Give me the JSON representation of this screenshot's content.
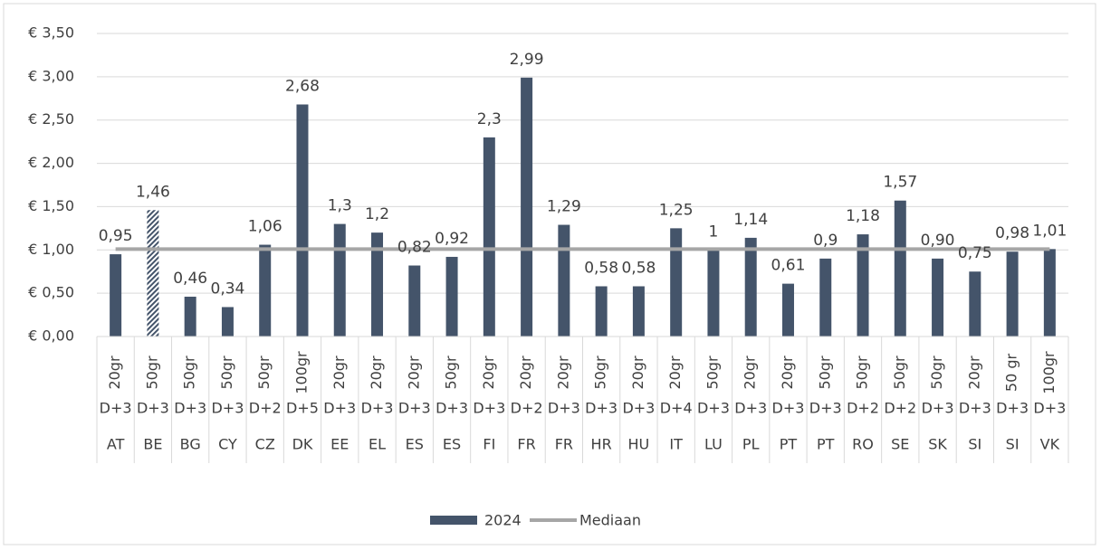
{
  "chart_data": {
    "type": "bar",
    "categories": [
      "AT",
      "BE",
      "BG",
      "CY",
      "CZ",
      "DK",
      "EE",
      "EL",
      "ES",
      "ES",
      "FI",
      "FR",
      "FR",
      "HR",
      "HU",
      "IT",
      "LU",
      "PL",
      "PT",
      "PT",
      "RO",
      "SE",
      "SK",
      "SI",
      "SI",
      "VK"
    ],
    "weights": [
      "20gr",
      "50gr",
      "50gr",
      "50gr",
      "50gr",
      "100gr",
      "20gr",
      "20gr",
      "20gr",
      "50gr",
      "20gr",
      "20gr",
      "20gr",
      "50gr",
      "20gr",
      "20gr",
      "50gr",
      "20gr",
      "20gr",
      "50gr",
      "50gr",
      "50gr",
      "50gr",
      "20gr",
      "50 gr",
      "100gr"
    ],
    "delivery": [
      "D+3",
      "D+3",
      "D+3",
      "D+3",
      "D+2",
      "D+5",
      "D+3",
      "D+3",
      "D+3",
      "D+3",
      "D+3",
      "D+2",
      "D+3",
      "D+3",
      "D+3",
      "D+4",
      "D+3",
      "D+3",
      "D+3",
      "D+3",
      "D+2",
      "D+2",
      "D+3",
      "D+3",
      "D+3",
      "D+3"
    ],
    "series": [
      {
        "name": "2024",
        "type": "bar",
        "color": "#44546a",
        "hatched_index": 1,
        "values": [
          0.95,
          1.46,
          0.46,
          0.34,
          1.06,
          2.68,
          1.3,
          1.2,
          0.82,
          0.92,
          2.3,
          2.99,
          1.29,
          0.58,
          0.58,
          1.25,
          1,
          1.14,
          0.61,
          0.9,
          1.18,
          1.57,
          0.9,
          0.75,
          0.98,
          1.01
        ],
        "value_labels": [
          "0,95",
          "1,46",
          "0,46",
          "0,34",
          "1,06",
          "2,68",
          "1,3",
          "1,2",
          "0,82",
          "0,92",
          "2,3",
          "2,99",
          "1,29",
          "0,58",
          "0,58",
          "1,25",
          "1",
          "1,14",
          "0,61",
          "0,9",
          "1,18",
          "1,57",
          "0,90",
          "0,75",
          "0,98",
          "1,01"
        ]
      },
      {
        "name": "Mediaan",
        "type": "line",
        "color": "#a6a6a6",
        "values": [
          1.01,
          1.01,
          1.01,
          1.01,
          1.01,
          1.01,
          1.01,
          1.01,
          1.01,
          1.01,
          1.01,
          1.01,
          1.01,
          1.01,
          1.01,
          1.01,
          1.01,
          1.01,
          1.01,
          1.01,
          1.01,
          1.01,
          1.01,
          1.01,
          1.01,
          1.01
        ]
      }
    ],
    "ylim": [
      0,
      3.5
    ],
    "yticks": [
      {
        "value": 0,
        "label": "€ 0,00"
      },
      {
        "value": 0.5,
        "label": "€ 0,50"
      },
      {
        "value": 1,
        "label": "€ 1,00"
      },
      {
        "value": 1.5,
        "label": "€ 1,50"
      },
      {
        "value": 2,
        "label": "€ 2,00"
      },
      {
        "value": 2.5,
        "label": "€ 2,50"
      },
      {
        "value": 3,
        "label": "€ 3,00"
      },
      {
        "value": 3.5,
        "label": "€ 3,50"
      }
    ],
    "grid": true,
    "legend": "bottom"
  }
}
